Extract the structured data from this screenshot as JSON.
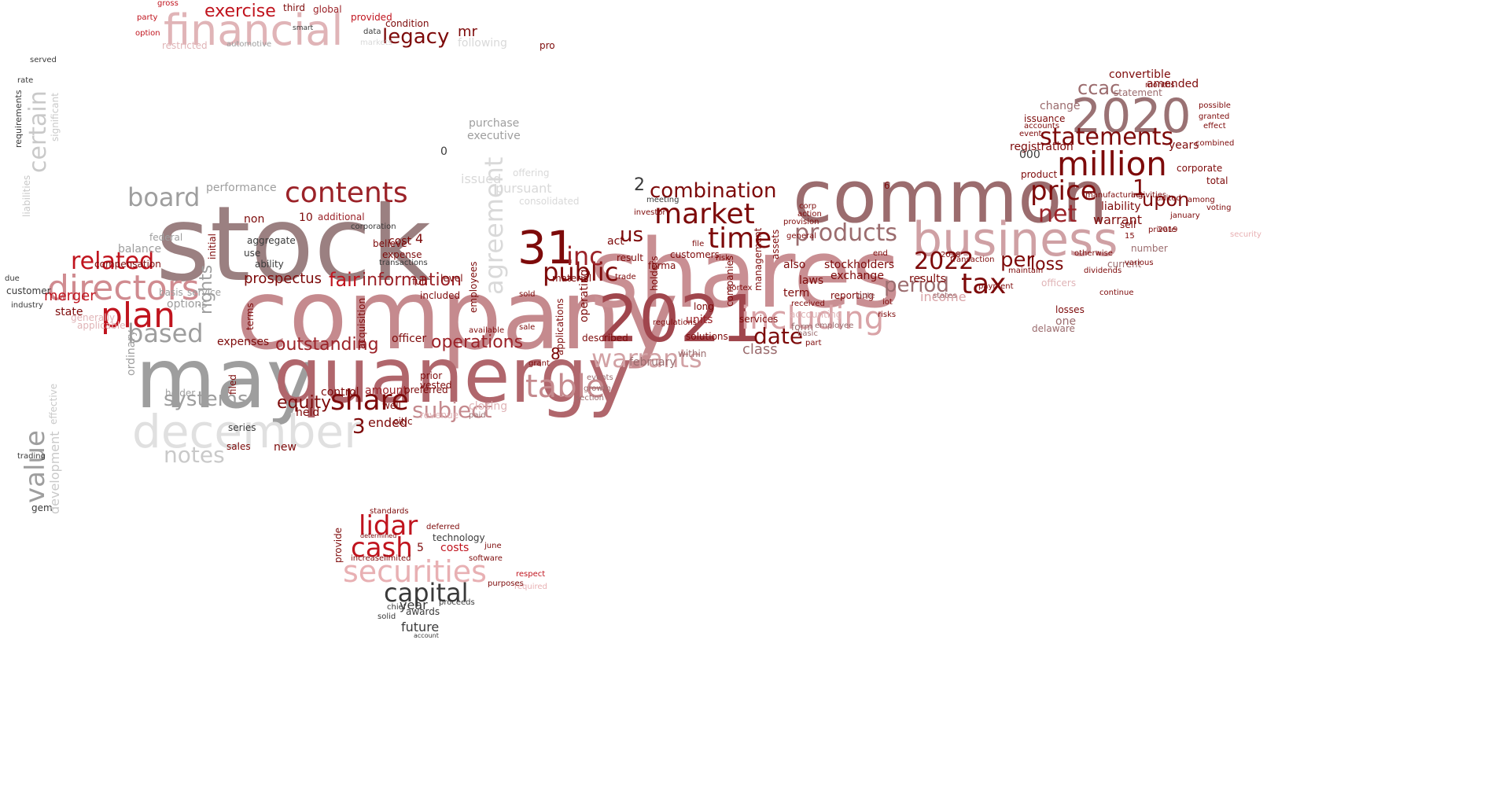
{
  "palette": {
    "dark_red": "#7d0a0a",
    "red": "#c0141e",
    "rose": "#b87479",
    "mauve": "#9b6c6e",
    "pink": "#e8b0b3",
    "gray": "#a3a3a3",
    "dark_gray": "#3a3a3a",
    "light_gray": "#dcdcdc"
  },
  "words": [
    {
      "text": "stock",
      "color": "#9b8081"
    },
    {
      "text": "company",
      "color": "#c58a8e"
    },
    {
      "text": "shares",
      "color": "#c98f93"
    },
    {
      "text": "may",
      "color": "#9e9e9e"
    },
    {
      "text": "common",
      "color": "#9b6c6e"
    },
    {
      "text": "quanergy",
      "color": "#b0666c"
    },
    {
      "text": "2021",
      "color": "#a0464d"
    },
    {
      "text": "business",
      "color": "#cfa0a4"
    },
    {
      "text": "financial",
      "color": "#e0b4b7"
    },
    {
      "text": "december",
      "color": "#e0e0e0"
    },
    {
      "text": "2020",
      "color": "#9a7274"
    },
    {
      "text": "directors",
      "color": "#d08b90"
    },
    {
      "text": "including",
      "color": "#d9a3a7"
    },
    {
      "text": "31",
      "color": "#7d0a0a"
    },
    {
      "text": "plan",
      "color": "#c0141e"
    },
    {
      "text": "contents",
      "color": "#9b2228"
    },
    {
      "text": "million",
      "color": "#7d0a0a"
    },
    {
      "text": "market",
      "color": "#7d0a0a"
    },
    {
      "text": "agreement",
      "color": "#d9d9d9"
    },
    {
      "text": "table",
      "color": "#c58a8e"
    },
    {
      "text": "warrants",
      "color": "#d2a2a5"
    },
    {
      "text": "products",
      "color": "#9b6c6e"
    },
    {
      "text": "price",
      "color": "#7d0a0a"
    },
    {
      "text": "statements",
      "color": "#7d0a0a"
    },
    {
      "text": "board",
      "color": "#9e9e9e"
    },
    {
      "text": "based",
      "color": "#9e9e9e"
    },
    {
      "text": "securities",
      "color": "#e8b0b3"
    },
    {
      "text": "lidar",
      "color": "#c0141e"
    },
    {
      "text": "cash",
      "color": "#c0141e"
    },
    {
      "text": "capital",
      "color": "#3a3a3a"
    },
    {
      "text": "value",
      "color": "#9e9e9e"
    },
    {
      "text": "certain",
      "color": "#c9c9c9"
    },
    {
      "text": "time",
      "color": "#7d0a0a"
    },
    {
      "text": "public",
      "color": "#7d0a0a"
    },
    {
      "text": "inc",
      "color": "#9b2228"
    },
    {
      "text": "combination",
      "color": "#7d0a0a"
    },
    {
      "text": "share",
      "color": "#7d0a0a"
    },
    {
      "text": "subject",
      "color": "#c58a8e"
    },
    {
      "text": "related",
      "color": "#c0141e"
    },
    {
      "text": "legacy",
      "color": "#7d0a0a"
    },
    {
      "text": "exercise",
      "color": "#c0141e"
    },
    {
      "text": "tax",
      "color": "#7d0a0a"
    },
    {
      "text": "net",
      "color": "#9b2228"
    },
    {
      "text": "2022",
      "color": "#7d0a0a"
    },
    {
      "text": "notes",
      "color": "#c9c9c9"
    },
    {
      "text": "systems",
      "color": "#9e9e9e"
    },
    {
      "text": "date",
      "color": "#7d0a0a"
    },
    {
      "text": "period",
      "color": "#9b6c6e"
    },
    {
      "text": "operations",
      "color": "#9b2228"
    },
    {
      "text": "outstanding",
      "color": "#9b2228"
    },
    {
      "text": "information",
      "color": "#9b2228"
    },
    {
      "text": "ccac",
      "color": "#9b6c6e"
    },
    {
      "text": "upon",
      "color": "#7d0a0a"
    },
    {
      "text": "per",
      "color": "#7d0a0a"
    },
    {
      "text": "loss",
      "color": "#7d0a0a"
    },
    {
      "text": "rights",
      "color": "#9e9e9e"
    },
    {
      "text": "fair",
      "color": "#c0141e"
    },
    {
      "text": "equity",
      "color": "#7d0a0a"
    },
    {
      "text": "prospectus",
      "color": "#7d0a0a"
    },
    {
      "text": "us",
      "color": "#7d0a0a"
    },
    {
      "text": "capital_",
      "color": "#3a3a3a"
    }
  ]
}
